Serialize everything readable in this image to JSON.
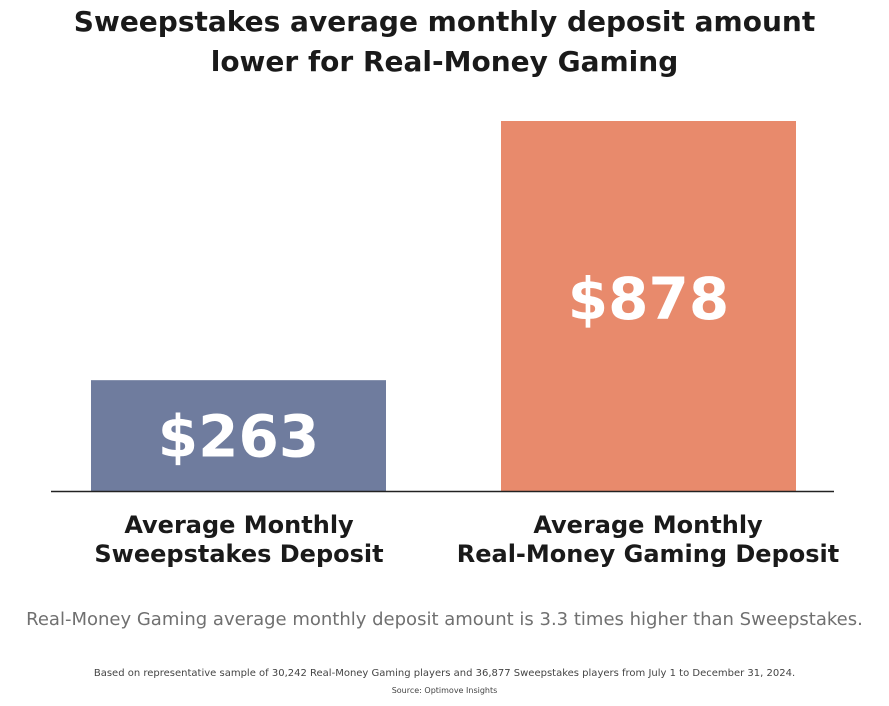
{
  "chart_data": {
    "type": "bar",
    "title_lines": [
      "Sweepstakes average monthly deposit amount",
      "lower for Real-Money Gaming"
    ],
    "categories": [
      [
        "Average Monthly",
        "Sweepstakes Deposit"
      ],
      [
        "Average Monthly",
        "Real-Money Gaming Deposit"
      ]
    ],
    "values": [
      263,
      878
    ],
    "data_labels": [
      "$263",
      "$878"
    ],
    "colors": [
      "#6f7c9e",
      "#e88a6c"
    ],
    "ylim": [
      0,
      878
    ],
    "grid": false,
    "legend": "none"
  },
  "summary": "Real-Money Gaming average monthly deposit amount is 3.3 times higher than Sweepstakes.",
  "footnote": "Based on representative sample of 30,242 Real-Money Gaming players and 36,877 Sweepstakes players from July 1 to December 31, 2024.",
  "source": "Source: Optimove Insights"
}
